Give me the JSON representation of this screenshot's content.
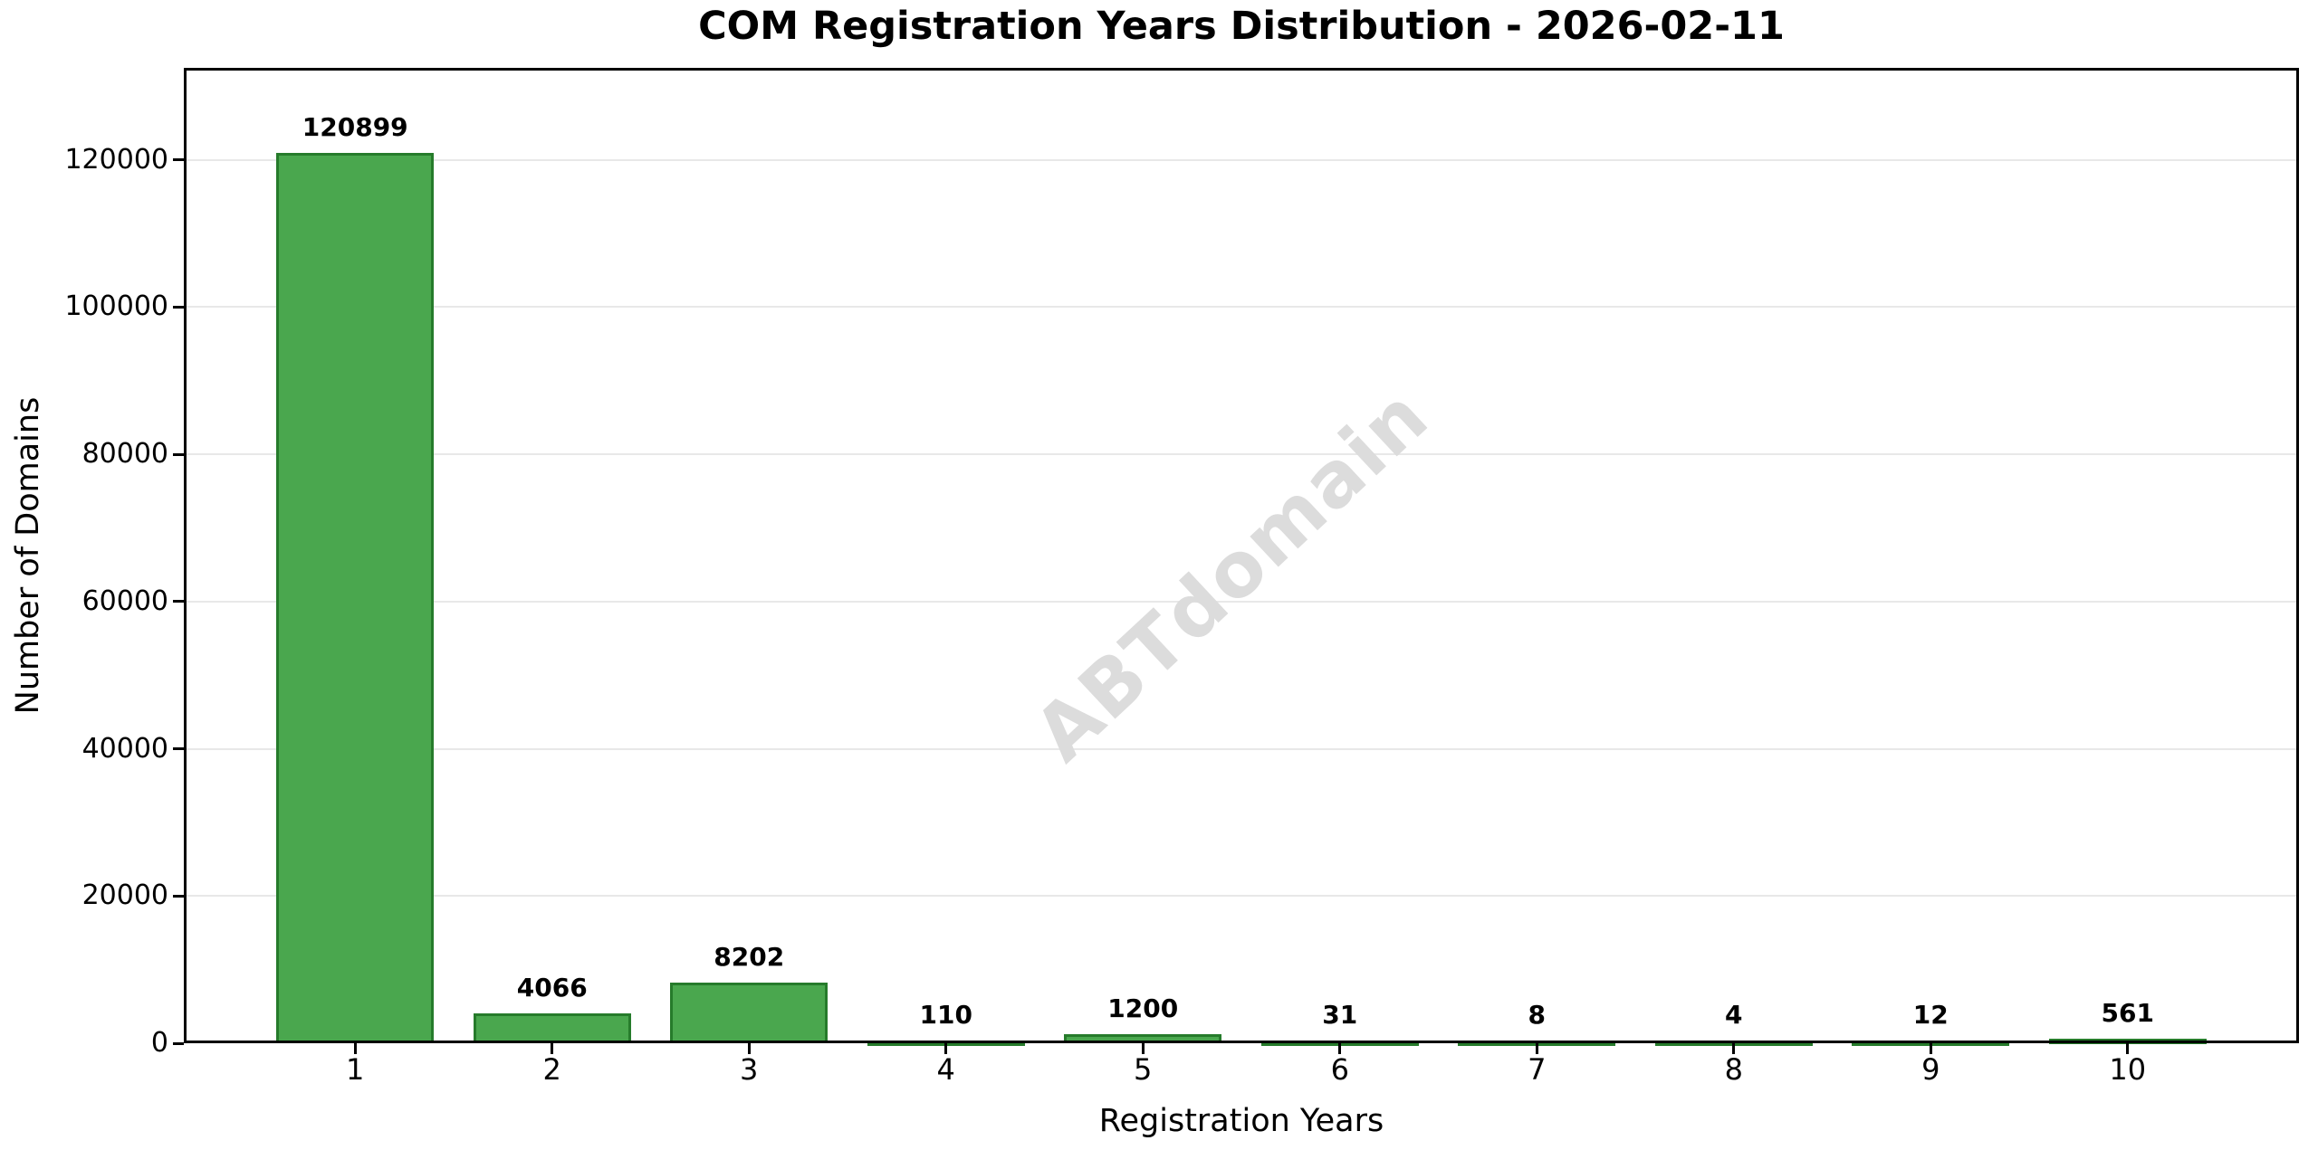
{
  "chart_data": {
    "type": "bar",
    "title": "COM Registration Years Distribution - 2026-02-11",
    "xlabel": "Registration Years",
    "ylabel": "Number of Domains",
    "categories": [
      "1",
      "2",
      "3",
      "4",
      "5",
      "6",
      "7",
      "8",
      "9",
      "10"
    ],
    "values": [
      120899,
      4066,
      8202,
      110,
      1200,
      31,
      8,
      4,
      12,
      561
    ],
    "yticks": [
      0,
      20000,
      40000,
      60000,
      80000,
      100000,
      120000
    ],
    "ylim": [
      0,
      132500
    ],
    "xlim": [
      0.13,
      10.87
    ],
    "bar_width_data_units": 0.8,
    "grid": "horizontal-only",
    "legend": "none",
    "value_labels_shown": true,
    "watermark": "ABTdomain",
    "colors": {
      "bar_fill": "#4aa74e",
      "bar_edge": "#267b2b",
      "gridline": "#e8e8e8",
      "spine": "#000000",
      "text": "#000000",
      "watermark": "#dcdcdc",
      "background": "#ffffff"
    }
  }
}
